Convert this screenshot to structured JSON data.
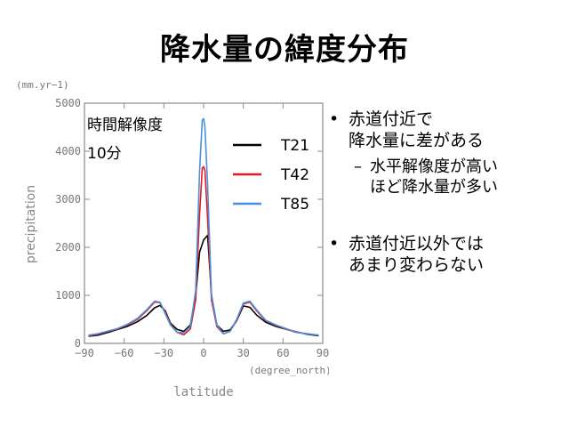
{
  "slide": {
    "title": "降水量の緯度分布"
  },
  "bullets": {
    "b1_line1": "赤道付近で",
    "b1_line2": "降水量に差がある",
    "b1_sub_line1": "水平解像度が高い",
    "b1_sub_line2": "ほど降水量が多い",
    "b2_line1": "赤道付近以外では",
    "b2_line2": "あまり変わらない",
    "bullet_glyph": "•",
    "dash_glyph": "–"
  },
  "chart_data": {
    "type": "line",
    "annotations": [
      "時間解像度",
      "10分"
    ],
    "xlabel": "latitude",
    "xunit": "(degree_north)",
    "ylabel": "precipitation",
    "yunit": "(mm.yr−1)",
    "xlim": [
      -90,
      90
    ],
    "ylim": [
      0,
      5000
    ],
    "xticks": [
      -90,
      -60,
      -30,
      0,
      30,
      60,
      90
    ],
    "yticks": [
      0,
      1000,
      2000,
      3000,
      4000,
      5000
    ],
    "legend_position": "top-right",
    "series": [
      {
        "name": "T21",
        "color": "#000000",
        "x": [
          -87,
          -80,
          -72,
          -65,
          -58,
          -50,
          -43,
          -37,
          -33,
          -29,
          -25,
          -20,
          -15,
          -10,
          -6,
          -3,
          0,
          3,
          6,
          10,
          15,
          20,
          25,
          30,
          35,
          40,
          47,
          55,
          63,
          70,
          78,
          87
        ],
        "y": [
          150,
          170,
          230,
          290,
          350,
          450,
          580,
          740,
          790,
          680,
          420,
          290,
          250,
          380,
          1000,
          1900,
          2150,
          2250,
          1000,
          380,
          250,
          280,
          470,
          780,
          750,
          590,
          440,
          350,
          290,
          240,
          190,
          160
        ]
      },
      {
        "name": "T42",
        "color": "#e41a1c",
        "x": [
          -87,
          -80,
          -72,
          -65,
          -58,
          -50,
          -43,
          -37,
          -33,
          -29,
          -25,
          -20,
          -15,
          -10,
          -6,
          -3,
          -1,
          0,
          1,
          3,
          6,
          10,
          15,
          20,
          25,
          30,
          35,
          40,
          47,
          55,
          63,
          70,
          78,
          87
        ],
        "y": [
          160,
          190,
          250,
          300,
          380,
          500,
          680,
          860,
          850,
          650,
          400,
          230,
          180,
          300,
          900,
          2700,
          3650,
          3680,
          3600,
          2600,
          900,
          350,
          200,
          250,
          480,
          820,
          860,
          680,
          470,
          370,
          290,
          230,
          200,
          170
        ]
      },
      {
        "name": "T85",
        "color": "#4a90e2",
        "x": [
          -87,
          -80,
          -72,
          -65,
          -58,
          -50,
          -43,
          -37,
          -33,
          -29,
          -25,
          -20,
          -15,
          -10,
          -6,
          -3,
          -1,
          0,
          1,
          3,
          6,
          10,
          15,
          20,
          25,
          30,
          35,
          40,
          47,
          55,
          63,
          70,
          78,
          87
        ],
        "y": [
          170,
          200,
          260,
          310,
          390,
          520,
          700,
          880,
          860,
          620,
          380,
          230,
          220,
          350,
          1100,
          3600,
          4650,
          4680,
          4500,
          3300,
          1000,
          380,
          200,
          250,
          500,
          840,
          880,
          700,
          480,
          380,
          300,
          230,
          200,
          170
        ]
      }
    ]
  }
}
